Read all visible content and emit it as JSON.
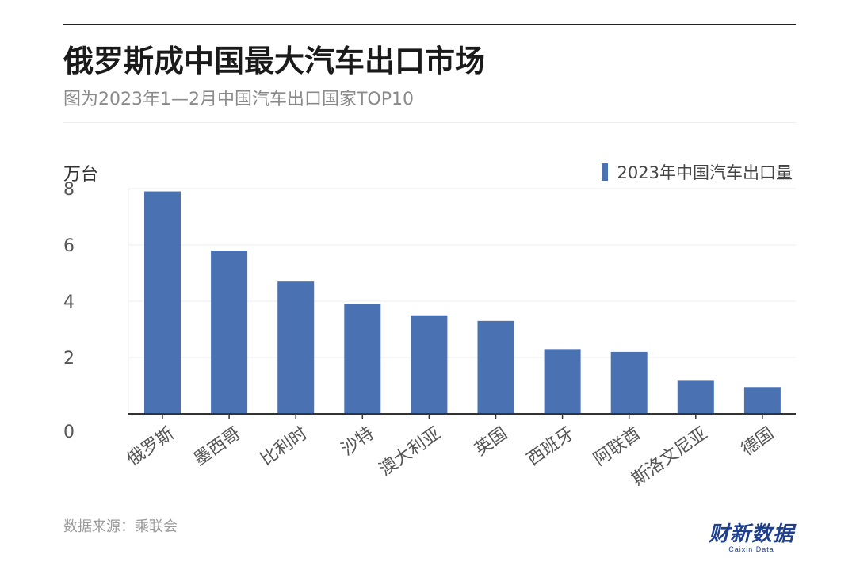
{
  "header": {
    "title": "俄罗斯成中国最大汽车出口市场",
    "subtitle": "图为2023年1—2月中国汽车出口国家TOP10"
  },
  "footer": {
    "source": "数据来源：乘联会",
    "logo_text": "财新数据",
    "logo_subtext": "Caixin Data"
  },
  "colors": {
    "bar": "#4a72b2",
    "axis": "#333333",
    "grid": "#eeeeee",
    "tick_text": "#555555",
    "category_text": "#555555"
  },
  "chart_data": {
    "type": "bar",
    "ylabel": "万台",
    "categories": [
      "俄罗斯",
      "墨西哥",
      "比利时",
      "沙特",
      "澳大利亚",
      "英国",
      "西班牙",
      "阿联酋",
      "斯洛文尼亚",
      "德国"
    ],
    "series": [
      {
        "name": "2023年中国汽车出口量",
        "values": [
          7.9,
          5.8,
          4.7,
          3.9,
          3.5,
          3.3,
          2.3,
          2.2,
          1.2,
          0.95
        ]
      }
    ],
    "ylim": [
      0,
      8
    ],
    "yticks": [
      0,
      2,
      4,
      6,
      8
    ],
    "grid": true,
    "legend_position": "top-right"
  }
}
